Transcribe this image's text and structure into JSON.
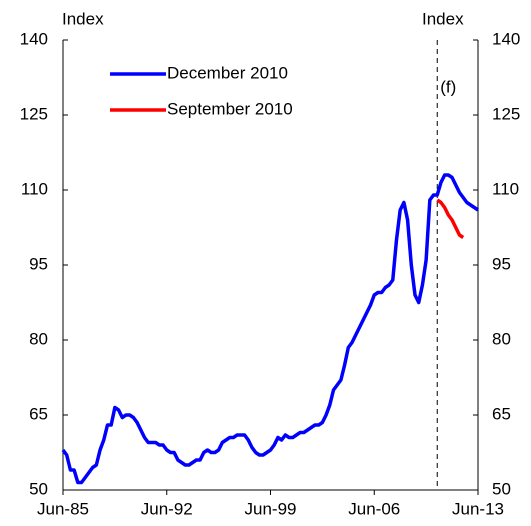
{
  "chart_data": {
    "type": "line",
    "y_label_left": "Index",
    "y_label_right": "Index",
    "forecast_label": "(f)",
    "forecast_start": 2010.75,
    "xlim": [
      1985.5,
      2013.5
    ],
    "xticks": [
      {
        "value": 1985.5,
        "label": "Jun-85"
      },
      {
        "value": 1992.5,
        "label": "Jun-92"
      },
      {
        "value": 1999.5,
        "label": "Jun-99"
      },
      {
        "value": 2006.5,
        "label": "Jun-06"
      },
      {
        "value": 2013.5,
        "label": "Jun-13"
      }
    ],
    "ylim": [
      50,
      140
    ],
    "yticks": [
      50,
      65,
      80,
      95,
      110,
      125,
      140
    ],
    "y2lim": [
      50,
      140
    ],
    "y2ticks": [
      50,
      65,
      80,
      95,
      110,
      125,
      140
    ],
    "legend": "upper left",
    "series": [
      {
        "name": "December 2010",
        "color": "#0000ff",
        "x": [
          1985.5,
          1985.75,
          1986,
          1986.25,
          1986.5,
          1986.75,
          1987,
          1987.25,
          1987.5,
          1987.75,
          1988,
          1988.25,
          1988.5,
          1988.75,
          1989,
          1989.25,
          1989.5,
          1989.75,
          1990,
          1990.25,
          1990.5,
          1990.75,
          1991,
          1991.25,
          1991.5,
          1991.75,
          1992,
          1992.25,
          1992.5,
          1992.75,
          1993,
          1993.25,
          1993.5,
          1993.75,
          1994,
          1994.25,
          1994.5,
          1994.75,
          1995,
          1995.25,
          1995.5,
          1995.75,
          1996,
          1996.25,
          1996.5,
          1996.75,
          1997,
          1997.25,
          1997.5,
          1997.75,
          1998,
          1998.25,
          1998.5,
          1998.75,
          1999,
          1999.25,
          1999.5,
          1999.75,
          2000,
          2000.25,
          2000.5,
          2000.75,
          2001,
          2001.25,
          2001.5,
          2001.75,
          2002,
          2002.25,
          2002.5,
          2002.75,
          2003,
          2003.25,
          2003.5,
          2003.75,
          2004,
          2004.25,
          2004.5,
          2004.75,
          2005,
          2005.25,
          2005.5,
          2005.75,
          2006,
          2006.25,
          2006.5,
          2006.75,
          2007,
          2007.25,
          2007.5,
          2007.75,
          2008,
          2008.25,
          2008.5,
          2008.75,
          2009,
          2009.25,
          2009.5,
          2009.75,
          2010,
          2010.25,
          2010.5,
          2010.75,
          2011,
          2011.25,
          2011.5,
          2011.75,
          2012,
          2012.25,
          2012.5,
          2012.75,
          2013,
          2013.25,
          2013.5
        ],
        "values": [
          58,
          57,
          54,
          54,
          51.5,
          51.5,
          52.5,
          53.5,
          54.5,
          55,
          58,
          60,
          63,
          63,
          66.5,
          66,
          64.5,
          65,
          65,
          64.5,
          63.5,
          62,
          60.5,
          59.5,
          59.5,
          59.5,
          59,
          59,
          58,
          57.5,
          57.5,
          56,
          55.5,
          55,
          55,
          55.5,
          56,
          56,
          57.5,
          58,
          57.5,
          57.5,
          58,
          59.5,
          60,
          60.5,
          60.5,
          61,
          61,
          61,
          60,
          58.5,
          57.5,
          57,
          57,
          57.5,
          58,
          59,
          60.5,
          60,
          61,
          60.5,
          60.5,
          61,
          61.5,
          61.5,
          62,
          62.5,
          63,
          63,
          63.5,
          65,
          67,
          70,
          71,
          72,
          75,
          78.5,
          79.5,
          81,
          82.5,
          84,
          85.5,
          87,
          89,
          89.5,
          89.5,
          90.5,
          91,
          92,
          100,
          106,
          107.5,
          104,
          95,
          89,
          87.5,
          91,
          96,
          108,
          109,
          109,
          111.5,
          113,
          113,
          112.5,
          111,
          109.5,
          108.5,
          107.5,
          107,
          106.5,
          106
        ]
      },
      {
        "name": "September 2010",
        "color": "#ff0000",
        "x": [
          2010.75,
          2011,
          2011.25,
          2011.5,
          2011.75,
          2012,
          2012.25,
          2012.5
        ],
        "values": [
          108,
          107.5,
          106.5,
          105,
          104,
          102.5,
          101,
          100.5
        ]
      }
    ]
  }
}
